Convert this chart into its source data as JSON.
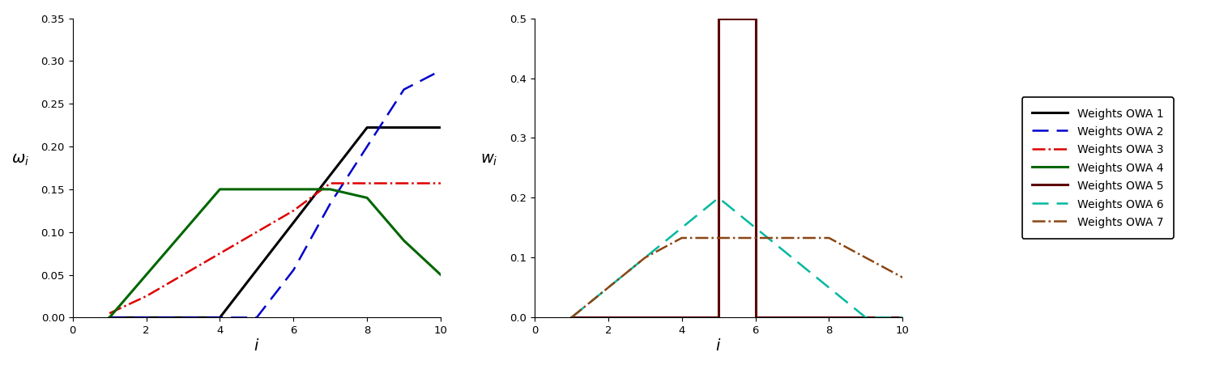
{
  "owa1_x": [
    1,
    2,
    3,
    4,
    5,
    6,
    7,
    8,
    9,
    10
  ],
  "owa1_y": [
    0.0,
    0.0,
    0.0,
    0.0,
    0.0556,
    0.1111,
    0.1667,
    0.2222,
    0.2222,
    0.2222
  ],
  "owa2_x": [
    1,
    2,
    3,
    4,
    5,
    6,
    7,
    8,
    9,
    10
  ],
  "owa2_y": [
    0.0,
    0.0,
    0.0,
    0.0,
    0.0,
    0.0556,
    0.1333,
    0.2,
    0.2667,
    0.2889
  ],
  "owa3_x": [
    1,
    2,
    3,
    4,
    5,
    6,
    7,
    8,
    9,
    10
  ],
  "owa3_y": [
    0.005,
    0.025,
    0.05,
    0.075,
    0.1,
    0.125,
    0.157,
    0.157,
    0.157,
    0.157
  ],
  "owa4_x": [
    1,
    2,
    3,
    4,
    5,
    6,
    7,
    8,
    9,
    10
  ],
  "owa4_y": [
    0.0,
    0.05,
    0.1,
    0.15,
    0.15,
    0.15,
    0.15,
    0.14,
    0.09,
    0.05
  ],
  "owa5_x": [
    1,
    2,
    3,
    4,
    5,
    5,
    6,
    6,
    7,
    8,
    9,
    10
  ],
  "owa5_y": [
    0.0,
    0.0,
    0.0,
    0.0,
    0.0,
    0.5,
    0.5,
    0.0,
    0.0,
    0.0,
    0.0,
    0.0
  ],
  "owa6_x": [
    1,
    2,
    3,
    4,
    5,
    6,
    7,
    8,
    9,
    10
  ],
  "owa6_y": [
    0.0,
    0.05,
    0.1,
    0.15,
    0.2,
    0.15,
    0.1,
    0.05,
    0.0,
    0.0
  ],
  "owa7_x": [
    1,
    2,
    3,
    4,
    5,
    6,
    7,
    8,
    9,
    10
  ],
  "owa7_y": [
    0.0,
    0.05,
    0.1,
    0.133,
    0.133,
    0.133,
    0.133,
    0.133,
    0.1,
    0.067
  ],
  "color1": "#000000",
  "color2": "#0000CC",
  "color3": "#DD0000",
  "color4": "#006600",
  "color5": "#5C0000",
  "color6": "#00B8A0",
  "color7": "#8B4513",
  "ylabel_left": "$\\omega_i$",
  "ylabel_right": "$w_i$",
  "xlabel": "$i$",
  "xlim": [
    0,
    10
  ],
  "ylim_left": [
    0,
    0.35
  ],
  "ylim_right": [
    0,
    0.5
  ],
  "xticks": [
    0,
    2,
    4,
    6,
    8,
    10
  ],
  "yticks_left": [
    0,
    0.05,
    0.1,
    0.15,
    0.2,
    0.25,
    0.3,
    0.35
  ],
  "yticks_right": [
    0,
    0.1,
    0.2,
    0.3,
    0.4,
    0.5
  ],
  "legend_labels": [
    "Weights OWA 1",
    "Weights OWA 2",
    "Weights OWA 3",
    "Weights OWA 4",
    "Weights OWA 5",
    "Weights OWA 6",
    "Weights OWA 7"
  ]
}
